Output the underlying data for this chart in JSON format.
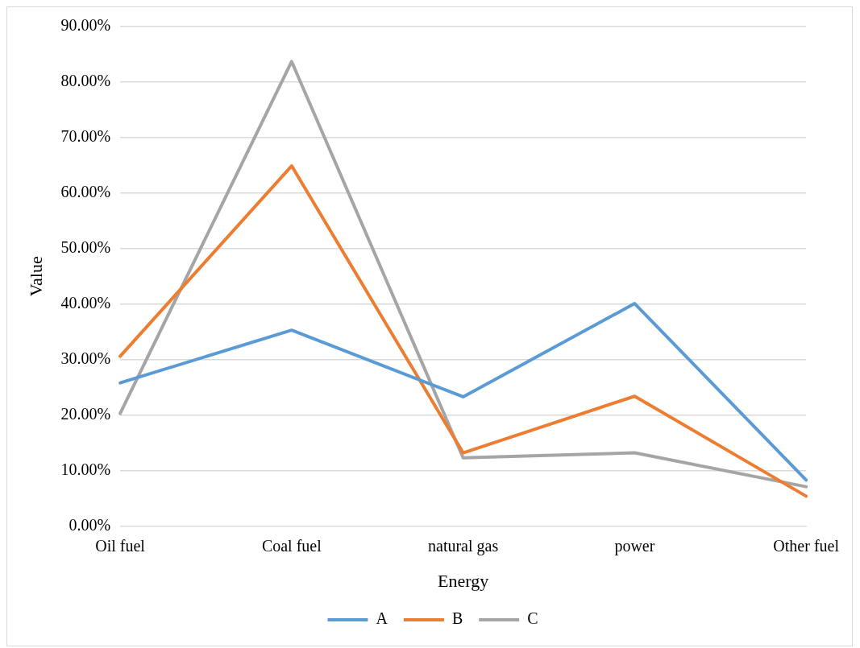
{
  "chart_data": {
    "type": "line",
    "xlabel": "Energy",
    "ylabel": "Value",
    "categories": [
      "Oil fuel",
      "Coal fuel",
      "natural gas",
      "power",
      "Other fuel"
    ],
    "series": [
      {
        "name": "A",
        "color": "#5b9bd5",
        "values": [
          25.8,
          35.3,
          23.3,
          40.1,
          8.3
        ]
      },
      {
        "name": "B",
        "color": "#ed7d31",
        "values": [
          30.6,
          64.9,
          13.2,
          23.4,
          5.4
        ]
      },
      {
        "name": "C",
        "color": "#a5a5a5",
        "values": [
          20.3,
          83.7,
          12.3,
          13.2,
          7.1
        ]
      }
    ],
    "ylim": [
      0,
      90
    ],
    "yticks": [
      {
        "value": 0,
        "label": "0.00%"
      },
      {
        "value": 10,
        "label": "10.00%"
      },
      {
        "value": 20,
        "label": "20.00%"
      },
      {
        "value": 30,
        "label": "30.00%"
      },
      {
        "value": 40,
        "label": "40.00%"
      },
      {
        "value": 50,
        "label": "50.00%"
      },
      {
        "value": 60,
        "label": "60.00%"
      },
      {
        "value": 70,
        "label": "70.00%"
      },
      {
        "value": 80,
        "label": "80.00%"
      },
      {
        "value": 90,
        "label": "90.00%"
      }
    ],
    "grid": "y",
    "legend": "bottom",
    "marker": "none",
    "line_style": "solid"
  }
}
